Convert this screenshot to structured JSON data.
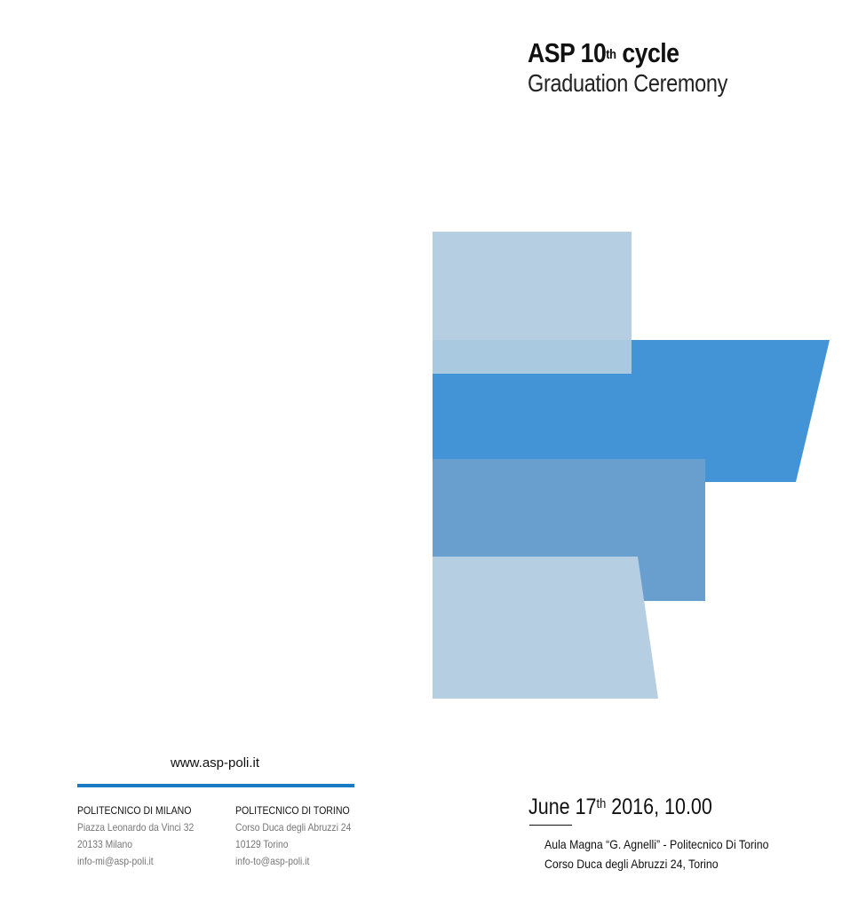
{
  "colors": {
    "light_blue": "#b5cee2",
    "mid_blue": "#4294d7",
    "steel_blue": "#689fcf",
    "rule_blue": "#1a7bc1"
  },
  "header": {
    "title_prefix": "ASP 10",
    "title_sup": "th",
    "title_suffix": " cycle",
    "subtitle": "Graduation Ceremony"
  },
  "footer": {
    "website": "www.asp-poli.it",
    "offices": [
      {
        "name": "POLITECNICO DI MILANO",
        "address_1": "Piazza Leonardo da Vinci 32",
        "address_2": "20133 Milano",
        "email": "info-mi@asp-poli.it"
      },
      {
        "name": "POLITECNICO DI TORINO",
        "address_1": "Corso Duca degli Abruzzi 24",
        "address_2": "10129 Torino",
        "email": "info-to@asp-poli.it"
      }
    ]
  },
  "event": {
    "date_prefix": "June 17",
    "date_sup": "th",
    "date_suffix": " 2016, 10.00",
    "venue_line_1": "Aula Magna “G. Agnelli” - Politecnico Di Torino",
    "venue_line_2": "Corso Duca degli Abruzzi 24, Torino"
  }
}
